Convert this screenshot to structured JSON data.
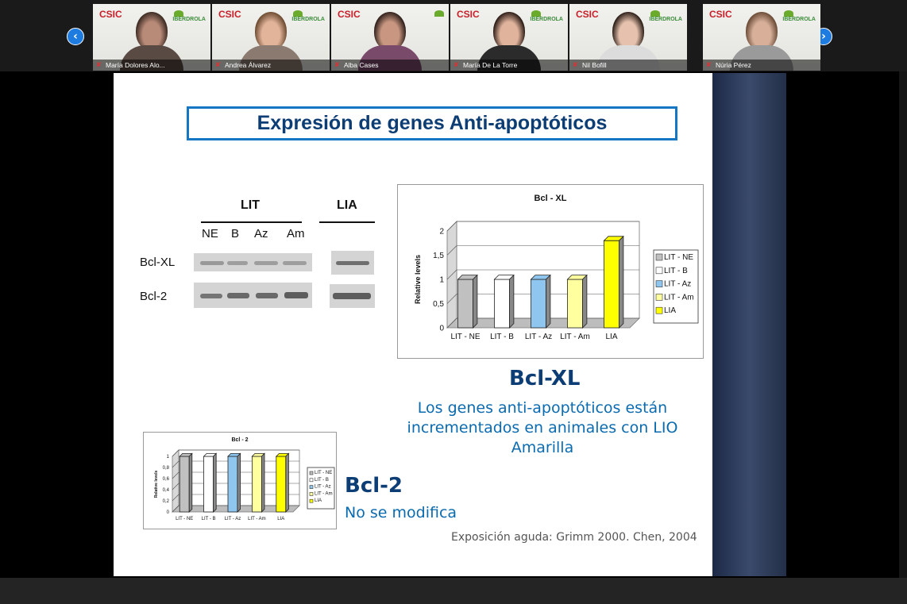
{
  "participants": [
    {
      "name": "María Dolores Alo...",
      "logo_left": "CSIC",
      "logo_right": "IBERDROLA",
      "hair": "#3b2a22",
      "skin": "#b88a78",
      "top": "#5a4a44"
    },
    {
      "name": "Andrea Álvarez",
      "logo_left": "CSIC",
      "logo_right": "IBERDROLA",
      "hair": "#6b4a30",
      "skin": "#e2b49a",
      "top": "#8b7a70"
    },
    {
      "name": "Alba Cases",
      "logo_left": "CSIC",
      "logo_right": "",
      "hair": "#2e1f1a",
      "skin": "#c99781",
      "top": "#7a4a6a"
    },
    {
      "name": "María De La Torre",
      "logo_left": "CSIC",
      "logo_right": "IBERDROLA",
      "hair": "#2a1a14",
      "skin": "#e0b39c",
      "top": "#2b2b2b"
    },
    {
      "name": "Nil Bofill",
      "logo_left": "CSIC",
      "logo_right": "IBERDROLA",
      "hair": "#2a1d16",
      "skin": "#e6c2ae",
      "top": "#dcdcdc"
    },
    {
      "name": "Núria Pérez",
      "logo_left": "CSIC",
      "logo_right": "IBERDROLA",
      "hair": "#6a4b36",
      "skin": "#d8b09a",
      "top": "#9a9a9a"
    }
  ],
  "nav": {
    "prev": "‹",
    "next": "›"
  },
  "slide": {
    "title": "Expresión de genes Anti-apoptóticos",
    "blot": {
      "group1": "LIT",
      "group2": "LIA",
      "lanes": [
        "NE",
        "B",
        "Az",
        "Am"
      ],
      "rows": [
        "Bcl-XL",
        "Bcl-2"
      ]
    },
    "bclxl_heading": "Bcl-XL",
    "bclxl_text_1": "Los genes anti-apoptóticos están",
    "bclxl_text_2": "incrementados en animales con LIO",
    "bclxl_text_3": "Amarilla",
    "bcl2_heading": "Bcl-2",
    "bcl2_text": "No se modifica",
    "citation": "Exposición aguda: Grimm  2000. Chen, 2004"
  },
  "chart_data": [
    {
      "type": "bar",
      "title": "Bcl - XL",
      "ylabel": "Relative levels",
      "categories": [
        "LIT - NE",
        "LIT - B",
        "LIT - Az",
        "LIT - Am",
        "LIA"
      ],
      "values": [
        1,
        1,
        1,
        1,
        1.8
      ],
      "colors": [
        "#c0c0c0",
        "#ffffff",
        "#8ec6f0",
        "#ffffa0",
        "#ffff00"
      ],
      "yticks": [
        "0",
        "0,5",
        "1",
        "1,5",
        "2"
      ],
      "ylim": [
        0,
        2
      ],
      "legend": [
        "LIT - NE",
        "LIT - B",
        "LIT - Az",
        "LIT - Am",
        "LIA"
      ],
      "legend_position": "right"
    },
    {
      "type": "bar",
      "title": "Bcl - 2",
      "ylabel": "Relative levels",
      "categories": [
        "LIT - NE",
        "LIT - B",
        "LIT - Az",
        "LIT - Am",
        "LIA"
      ],
      "values": [
        1,
        1,
        1,
        1,
        1
      ],
      "colors": [
        "#c0c0c0",
        "#ffffff",
        "#8ec6f0",
        "#ffffa0",
        "#ffff00"
      ],
      "yticks": [
        "0",
        "0,2",
        "0,4",
        "0,6",
        "0,8",
        "1"
      ],
      "ylim": [
        0,
        1
      ],
      "legend": [
        "LIT - NE",
        "LIT - B",
        "LIT - Az",
        "LIT - Am",
        "LIA"
      ],
      "legend_position": "right"
    }
  ]
}
